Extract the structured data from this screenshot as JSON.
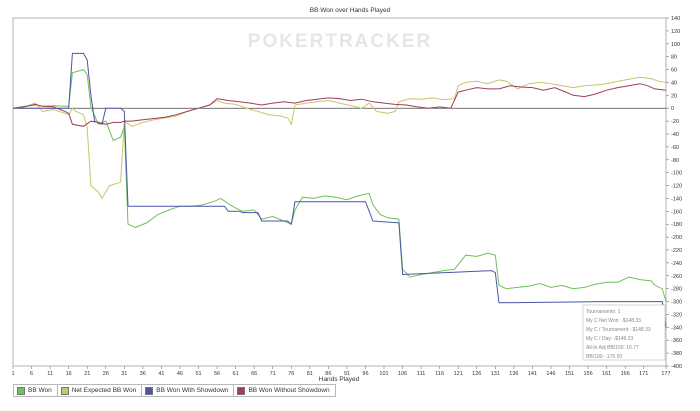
{
  "chart_data": {
    "type": "line",
    "title": "BB Won over Hands Played",
    "xlabel": "Hands Played",
    "ylabel": "",
    "watermark": "POKERTRACKER",
    "xlim": [
      1,
      177
    ],
    "ylim": [
      -400,
      140
    ],
    "x_ticks": [
      1,
      6,
      11,
      16,
      21,
      26,
      31,
      36,
      41,
      46,
      51,
      56,
      61,
      66,
      71,
      76,
      81,
      86,
      91,
      96,
      101,
      106,
      111,
      116,
      121,
      126,
      131,
      136,
      141,
      146,
      151,
      156,
      161,
      166,
      171,
      177
    ],
    "y_ticks": [
      140,
      120,
      100,
      80,
      60,
      40,
      20,
      0,
      -20,
      -40,
      -60,
      -80,
      -100,
      -120,
      -140,
      -160,
      -180,
      -200,
      -220,
      -240,
      -260,
      -280,
      -300,
      -320,
      -340,
      -360,
      -380,
      -400
    ],
    "grid": false,
    "legend_position": "bottom-left",
    "series": [
      {
        "name": "BB Won",
        "color": "#6fc15b",
        "points": [
          [
            1,
            0
          ],
          [
            4,
            3
          ],
          [
            7,
            5
          ],
          [
            9,
            3
          ],
          [
            12,
            4
          ],
          [
            15,
            3
          ],
          [
            16,
            3
          ],
          [
            17,
            55
          ],
          [
            20,
            60
          ],
          [
            21,
            52
          ],
          [
            22,
            2
          ],
          [
            24,
            -25
          ],
          [
            26,
            -20
          ],
          [
            28,
            -50
          ],
          [
            30,
            -45
          ],
          [
            31,
            -28
          ],
          [
            32,
            -180
          ],
          [
            34,
            -185
          ],
          [
            37,
            -178
          ],
          [
            40,
            -165
          ],
          [
            43,
            -158
          ],
          [
            46,
            -152
          ],
          [
            49,
            -152
          ],
          [
            52,
            -150
          ],
          [
            55,
            -145
          ],
          [
            57,
            -140
          ],
          [
            59,
            -148
          ],
          [
            61,
            -155
          ],
          [
            63,
            -160
          ],
          [
            66,
            -158
          ],
          [
            68,
            -172
          ],
          [
            71,
            -168
          ],
          [
            74,
            -175
          ],
          [
            76,
            -180
          ],
          [
            77,
            -158
          ],
          [
            79,
            -138
          ],
          [
            82,
            -140
          ],
          [
            85,
            -136
          ],
          [
            88,
            -138
          ],
          [
            91,
            -142
          ],
          [
            94,
            -136
          ],
          [
            97,
            -132
          ],
          [
            98,
            -150
          ],
          [
            100,
            -165
          ],
          [
            102,
            -170
          ],
          [
            105,
            -172
          ],
          [
            106,
            -250
          ],
          [
            108,
            -262
          ],
          [
            111,
            -258
          ],
          [
            114,
            -255
          ],
          [
            117,
            -252
          ],
          [
            120,
            -250
          ],
          [
            123,
            -228
          ],
          [
            126,
            -230
          ],
          [
            129,
            -225
          ],
          [
            131,
            -228
          ],
          [
            132,
            -275
          ],
          [
            134,
            -280
          ],
          [
            137,
            -278
          ],
          [
            140,
            -276
          ],
          [
            143,
            -272
          ],
          [
            146,
            -278
          ],
          [
            149,
            -275
          ],
          [
            152,
            -280
          ],
          [
            155,
            -278
          ],
          [
            158,
            -273
          ],
          [
            161,
            -270
          ],
          [
            164,
            -270
          ],
          [
            167,
            -262
          ],
          [
            170,
            -266
          ],
          [
            173,
            -268
          ],
          [
            174,
            -275
          ],
          [
            176,
            -280
          ],
          [
            177,
            -300
          ]
        ]
      },
      {
        "name": "Net Expected BB Won",
        "color": "#c8c56a",
        "points": [
          [
            1,
            0
          ],
          [
            4,
            2
          ],
          [
            7,
            8
          ],
          [
            9,
            -5
          ],
          [
            12,
            -2
          ],
          [
            15,
            -8
          ],
          [
            16,
            -10
          ],
          [
            17,
            0
          ],
          [
            18,
            -5
          ],
          [
            20,
            -10
          ],
          [
            21,
            -30
          ],
          [
            22,
            -120
          ],
          [
            24,
            -130
          ],
          [
            25,
            -140
          ],
          [
            27,
            -120
          ],
          [
            30,
            -115
          ],
          [
            31,
            -20
          ],
          [
            33,
            -28
          ],
          [
            36,
            -22
          ],
          [
            39,
            -18
          ],
          [
            42,
            -15
          ],
          [
            45,
            -12
          ],
          [
            48,
            -5
          ],
          [
            51,
            0
          ],
          [
            54,
            5
          ],
          [
            56,
            12
          ],
          [
            58,
            8
          ],
          [
            61,
            6
          ],
          [
            64,
            0
          ],
          [
            67,
            -5
          ],
          [
            70,
            -10
          ],
          [
            73,
            -12
          ],
          [
            75,
            -15
          ],
          [
            76,
            -25
          ],
          [
            77,
            5
          ],
          [
            80,
            8
          ],
          [
            83,
            10
          ],
          [
            86,
            12
          ],
          [
            89,
            8
          ],
          [
            92,
            4
          ],
          [
            95,
            0
          ],
          [
            97,
            8
          ],
          [
            99,
            -5
          ],
          [
            102,
            -8
          ],
          [
            104,
            -5
          ],
          [
            105,
            10
          ],
          [
            108,
            15
          ],
          [
            111,
            14
          ],
          [
            114,
            16
          ],
          [
            117,
            13
          ],
          [
            120,
            15
          ],
          [
            121,
            35
          ],
          [
            123,
            40
          ],
          [
            126,
            42
          ],
          [
            129,
            38
          ],
          [
            132,
            44
          ],
          [
            134,
            42
          ],
          [
            137,
            30
          ],
          [
            140,
            38
          ],
          [
            143,
            40
          ],
          [
            146,
            38
          ],
          [
            149,
            35
          ],
          [
            152,
            32
          ],
          [
            155,
            35
          ],
          [
            158,
            36
          ],
          [
            161,
            38
          ],
          [
            164,
            42
          ],
          [
            167,
            45
          ],
          [
            170,
            48
          ],
          [
            173,
            46
          ],
          [
            175,
            42
          ],
          [
            177,
            40
          ]
        ]
      },
      {
        "name": "BB Won With Showdown",
        "color": "#4e54a8",
        "points": [
          [
            1,
            0
          ],
          [
            15,
            0
          ],
          [
            16,
            0
          ],
          [
            17,
            85
          ],
          [
            20,
            85
          ],
          [
            21,
            75
          ],
          [
            22,
            20
          ],
          [
            23,
            -20
          ],
          [
            25,
            -25
          ],
          [
            26,
            0
          ],
          [
            28,
            0
          ],
          [
            30,
            0
          ],
          [
            31,
            -5
          ],
          [
            32,
            -152
          ],
          [
            40,
            -152
          ],
          [
            50,
            -152
          ],
          [
            58,
            -152
          ],
          [
            59,
            -160
          ],
          [
            62,
            -160
          ],
          [
            63,
            -162
          ],
          [
            67,
            -162
          ],
          [
            68,
            -175
          ],
          [
            75,
            -175
          ],
          [
            76,
            -180
          ],
          [
            77,
            -145
          ],
          [
            96,
            -145
          ],
          [
            97,
            -160
          ],
          [
            98,
            -175
          ],
          [
            105,
            -178
          ],
          [
            106,
            -258
          ],
          [
            130,
            -252
          ],
          [
            131,
            -255
          ],
          [
            132,
            -302
          ],
          [
            160,
            -300
          ],
          [
            176,
            -300
          ],
          [
            177,
            -340
          ]
        ]
      },
      {
        "name": "BB Won Without Showdown",
        "color": "#a03c5a",
        "points": [
          [
            1,
            0
          ],
          [
            4,
            2
          ],
          [
            7,
            6
          ],
          [
            9,
            3
          ],
          [
            12,
            2
          ],
          [
            15,
            -5
          ],
          [
            16,
            -8
          ],
          [
            17,
            -25
          ],
          [
            20,
            -28
          ],
          [
            22,
            -20
          ],
          [
            24,
            -22
          ],
          [
            26,
            -25
          ],
          [
            28,
            -22
          ],
          [
            30,
            -22
          ],
          [
            31,
            -20
          ],
          [
            33,
            -20
          ],
          [
            36,
            -18
          ],
          [
            39,
            -16
          ],
          [
            42,
            -14
          ],
          [
            45,
            -10
          ],
          [
            48,
            -5
          ],
          [
            51,
            0
          ],
          [
            54,
            5
          ],
          [
            56,
            15
          ],
          [
            59,
            12
          ],
          [
            62,
            10
          ],
          [
            65,
            8
          ],
          [
            68,
            5
          ],
          [
            71,
            8
          ],
          [
            74,
            10
          ],
          [
            77,
            8
          ],
          [
            80,
            12
          ],
          [
            83,
            14
          ],
          [
            86,
            16
          ],
          [
            89,
            15
          ],
          [
            92,
            12
          ],
          [
            95,
            14
          ],
          [
            98,
            10
          ],
          [
            101,
            8
          ],
          [
            104,
            6
          ],
          [
            107,
            5
          ],
          [
            110,
            2
          ],
          [
            113,
            0
          ],
          [
            116,
            2
          ],
          [
            119,
            0
          ],
          [
            121,
            25
          ],
          [
            123,
            28
          ],
          [
            126,
            32
          ],
          [
            129,
            30
          ],
          [
            132,
            30
          ],
          [
            135,
            35
          ],
          [
            138,
            33
          ],
          [
            141,
            32
          ],
          [
            144,
            28
          ],
          [
            147,
            32
          ],
          [
            150,
            25
          ],
          [
            152,
            20
          ],
          [
            155,
            18
          ],
          [
            158,
            22
          ],
          [
            161,
            28
          ],
          [
            164,
            32
          ],
          [
            167,
            35
          ],
          [
            170,
            38
          ],
          [
            172,
            35
          ],
          [
            174,
            30
          ],
          [
            177,
            28
          ]
        ]
      }
    ],
    "info_box": [
      "Tournaments: 1",
      "My C Net Won: -$148.33",
      "My C / Tournament: -$148.33",
      "My C / Day: -$148.33",
      "All-In Adj BB/100: 16.77",
      "BB/100: -176.50"
    ]
  }
}
